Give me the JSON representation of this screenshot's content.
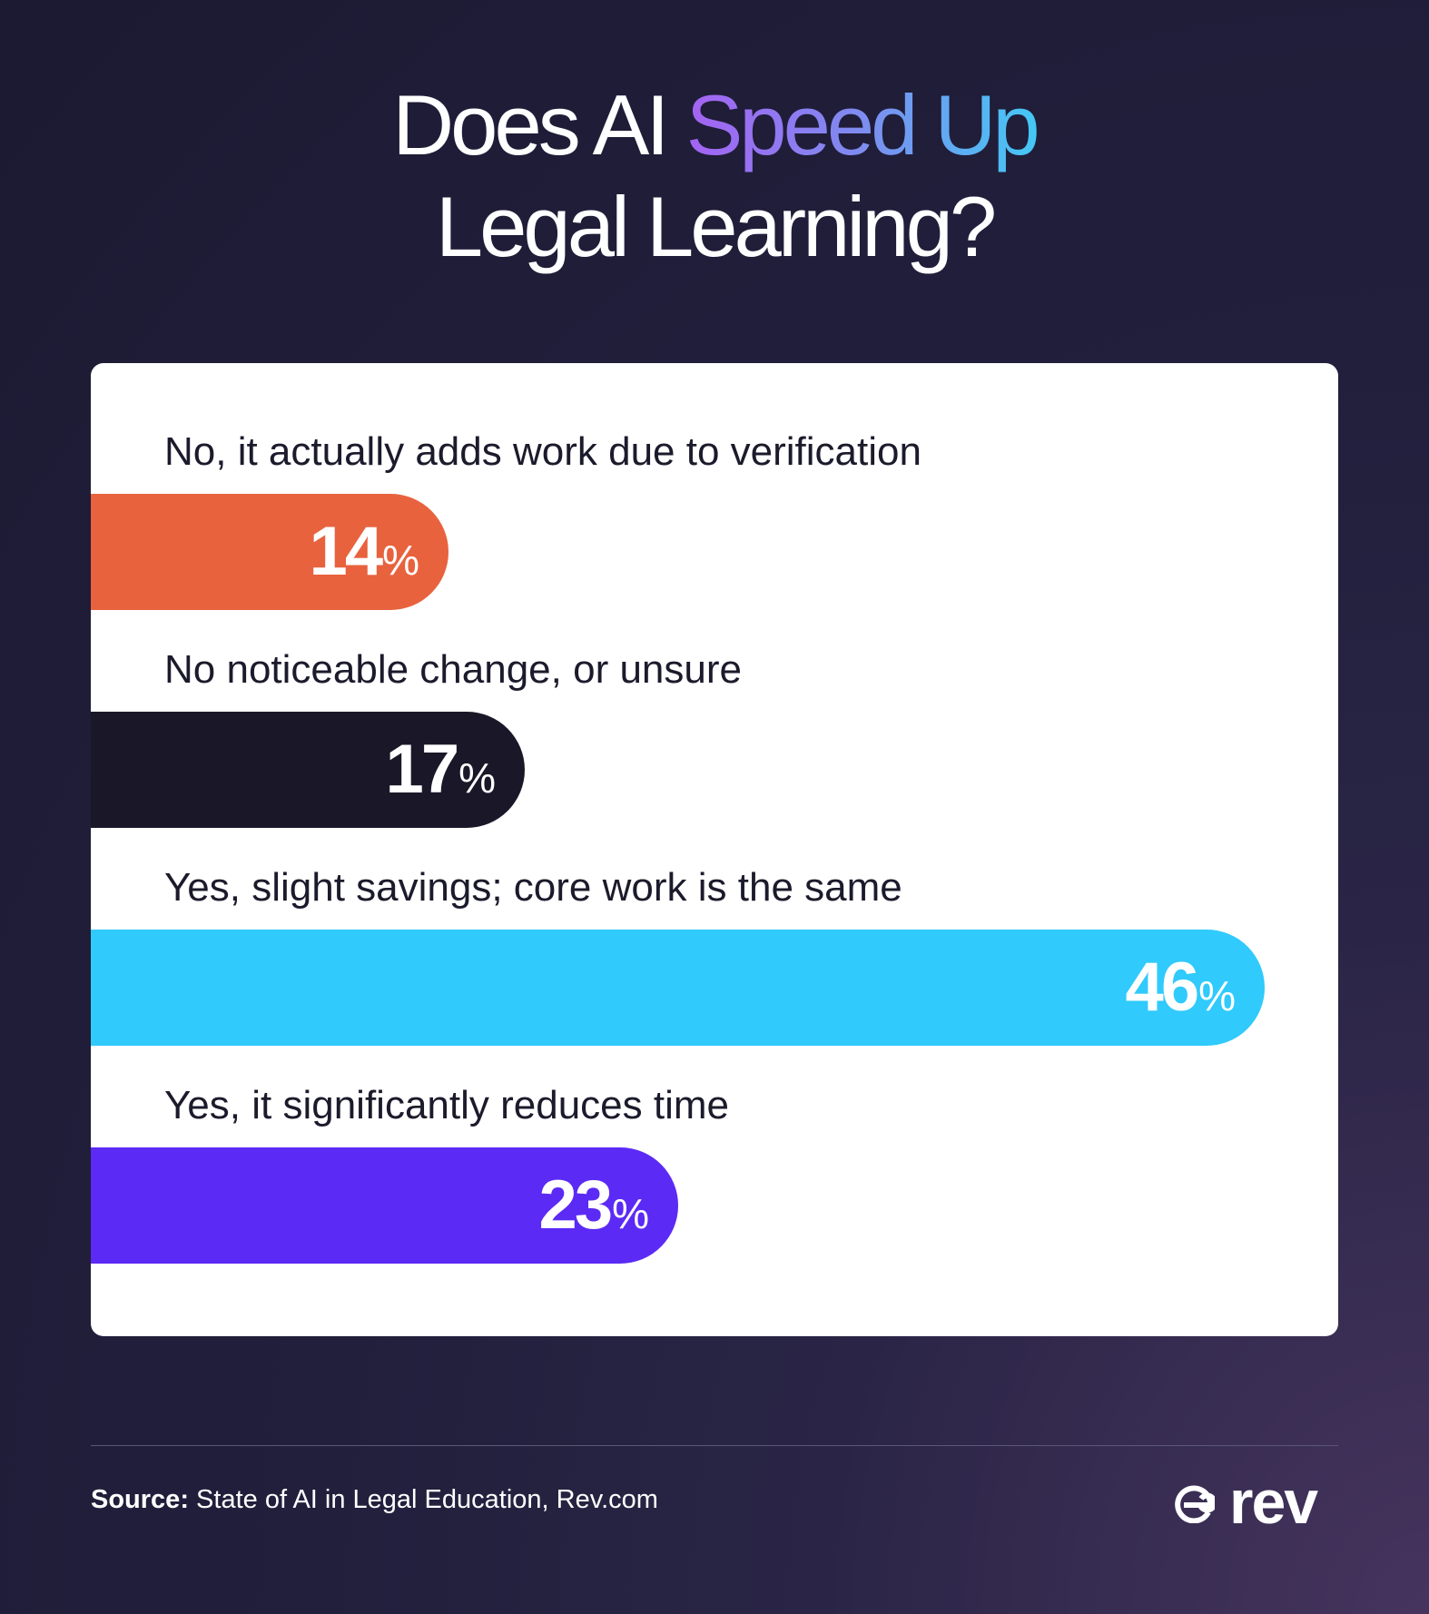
{
  "title": {
    "line1_prefix": "Does AI",
    "line1_accent": "Speed Up",
    "line2": "Legal Learning?"
  },
  "chart_data": {
    "type": "bar",
    "orientation": "horizontal",
    "unit": "%",
    "xlim": [
      0,
      50
    ],
    "categories": [
      "No, it actually adds work due to verification",
      "No noticeable change, or unsure",
      "Yes, slight savings; core work is the same",
      "Yes, it significantly reduces time"
    ],
    "values": [
      14,
      17,
      46,
      23
    ],
    "colors": [
      "#e8623e",
      "#1a1828",
      "#30cafc",
      "#5b2af5"
    ]
  },
  "footer": {
    "source_label": "Source:",
    "source_text": "State of AI in Legal Education, Rev.com",
    "logo_text": "rev",
    "logo_icon": "rev-at-icon"
  }
}
